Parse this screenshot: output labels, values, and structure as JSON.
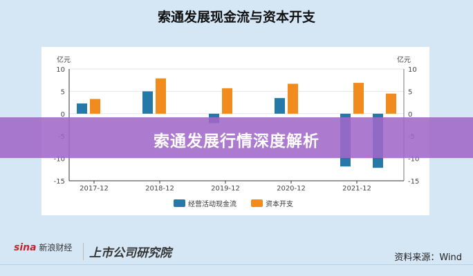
{
  "title": "索通发展现金流与资本开支",
  "banner": "索通发展行情深度解析",
  "footer": {
    "logo_sina": "sina",
    "logo_sina_cn": "新浪财经",
    "logo_institute": "上市公司研究院",
    "source": "资料来源：Wind"
  },
  "chart_data": {
    "type": "bar",
    "title": "索通发展现金流与资本开支",
    "ylabel_left": "亿元",
    "ylabel_right": "亿元",
    "ylim": [
      -15,
      10
    ],
    "yticks": [
      10,
      5,
      0,
      -5,
      -10,
      -15
    ],
    "categories": [
      "2017-12",
      "2018-12",
      "2019-12",
      "2020-12",
      "2021-12",
      ""
    ],
    "series": [
      {
        "name": "经营活动现金流",
        "color": "#2578a8",
        "values": [
          2.3,
          5.0,
          -2.1,
          3.5,
          -11.8,
          -12.1
        ]
      },
      {
        "name": "资本开支",
        "color": "#f28b1e",
        "values": [
          3.3,
          7.9,
          5.7,
          6.7,
          6.9,
          4.5
        ]
      }
    ],
    "grid": true,
    "legend": "bottom"
  }
}
